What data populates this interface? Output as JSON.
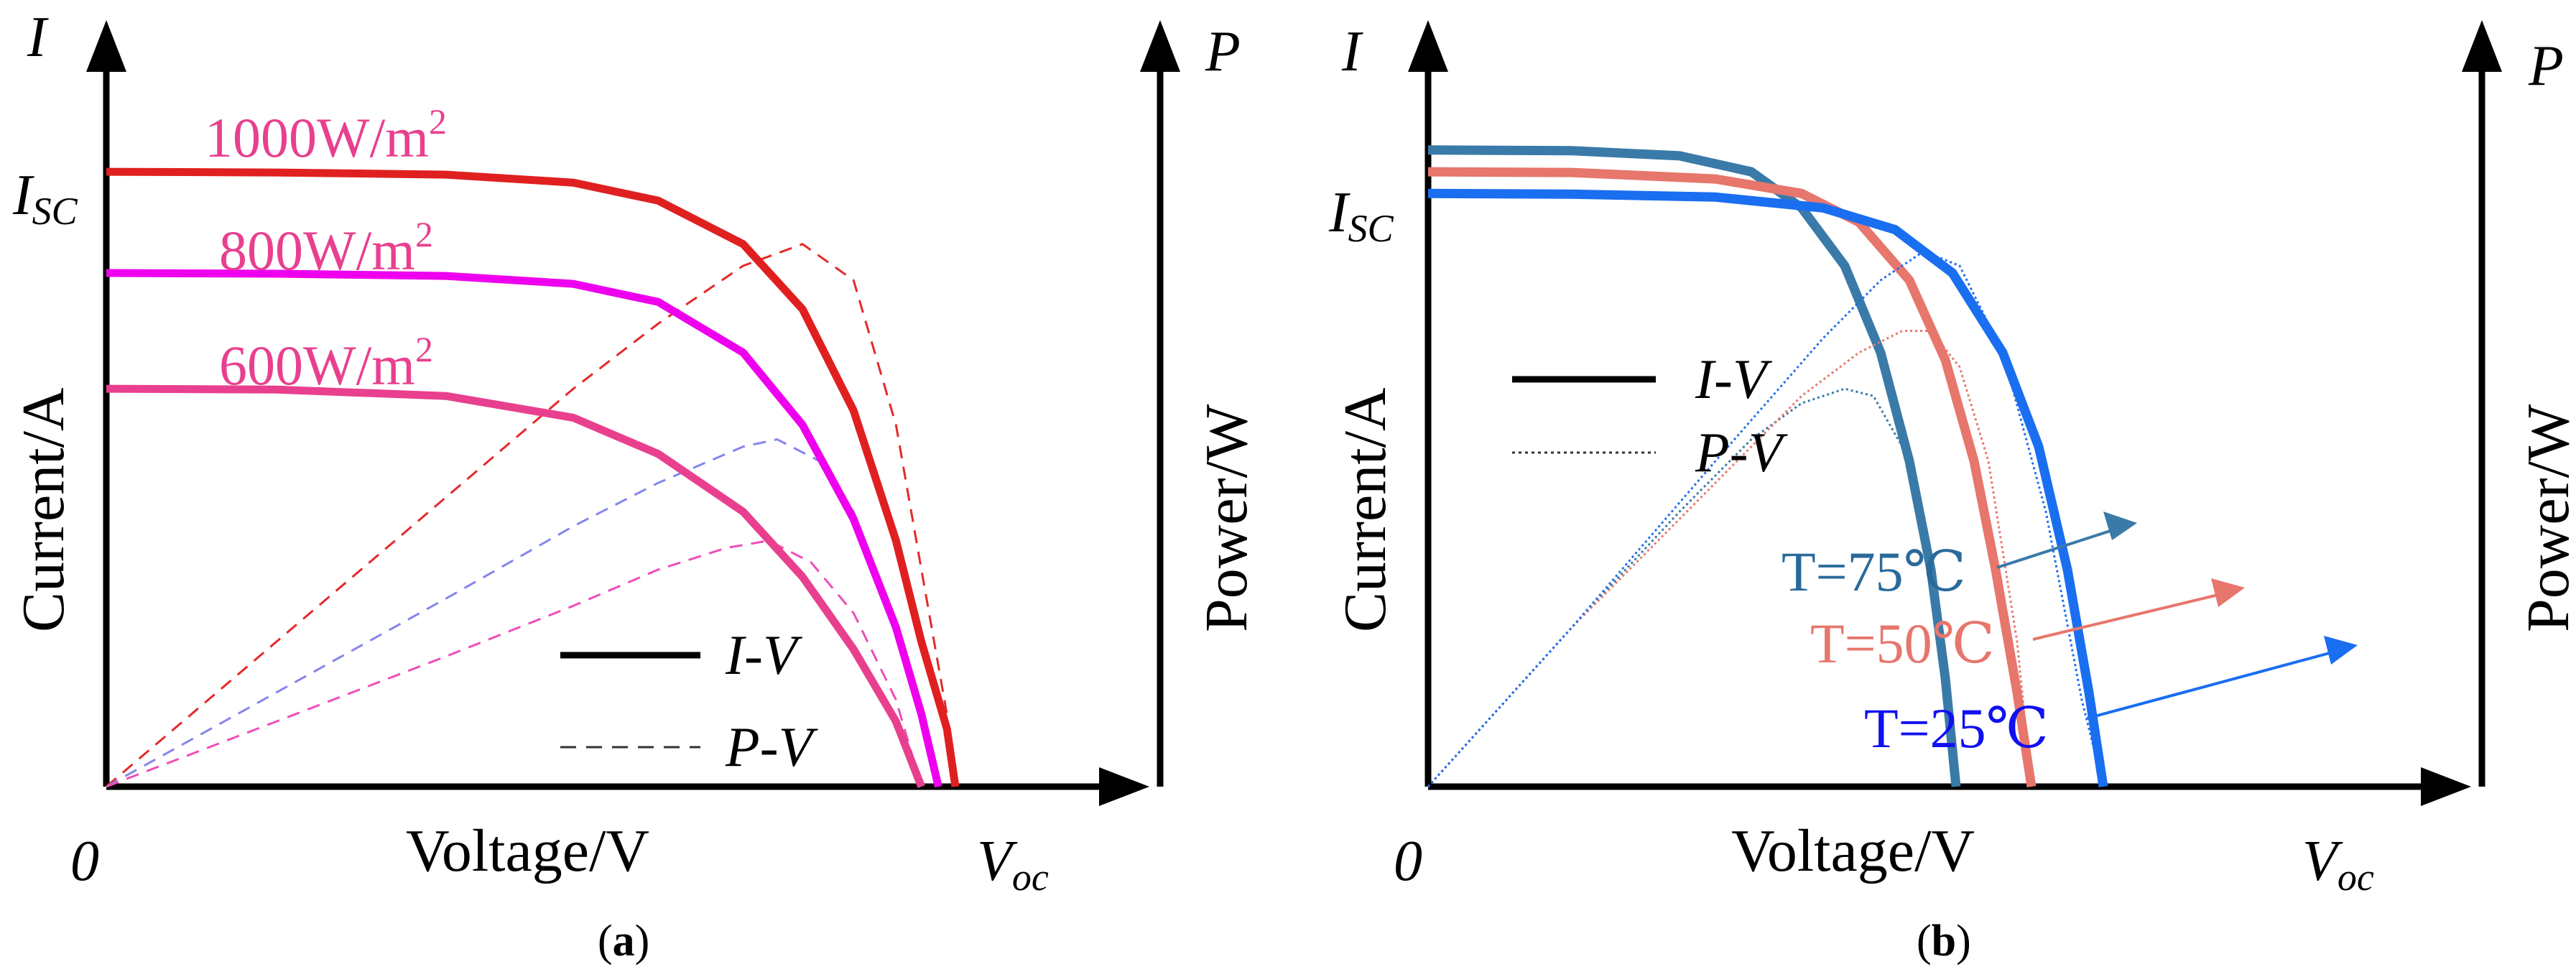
{
  "colors": {
    "axis": "#000000",
    "irr_1000": "#e02020",
    "irr_800": "#ee00ee",
    "irr_600": "#e8408e",
    "pv_1000": "#e52929",
    "pv_800": "#8585ee",
    "pv_600": "#ee4eb8",
    "t75": "#3a7aa8",
    "t50": "#e7766c",
    "t25": "#1a6ef0",
    "label_t75": "#2a6a9a",
    "label_t50": "#e7766c",
    "label_t25": "#1010f0",
    "legend": "#000000"
  },
  "chart_data": [
    {
      "panel": "a",
      "type": "line",
      "caption": "(a)",
      "panel_letter": "a",
      "xlabel": "Voltage/V",
      "ylabel": "Current/A",
      "y2label": "Power/W",
      "axis_I": "I",
      "axis_P": "P",
      "isc_main": "I",
      "isc_sub": "SC",
      "voc_main": "V",
      "voc_sub": "oc",
      "origin": "0",
      "legend": [
        {
          "label": "I-V",
          "style": "solid"
        },
        {
          "label": "P-V",
          "style": "dashed"
        }
      ],
      "series": [
        {
          "name": "1000W/m",
          "sup": "2",
          "color_key": "irr_1000",
          "iv": [
            [
              0,
              0.85
            ],
            [
              0.2,
              0.849
            ],
            [
              0.4,
              0.846
            ],
            [
              0.55,
              0.835
            ],
            [
              0.65,
              0.81
            ],
            [
              0.75,
              0.75
            ],
            [
              0.82,
              0.66
            ],
            [
              0.88,
              0.52
            ],
            [
              0.93,
              0.34
            ],
            [
              0.96,
              0.2
            ],
            [
              0.99,
              0.08
            ],
            [
              1.0,
              0
            ]
          ],
          "pv": [
            [
              0,
              0
            ],
            [
              0.2,
              0.2
            ],
            [
              0.4,
              0.4
            ],
            [
              0.55,
              0.55
            ],
            [
              0.65,
              0.64
            ],
            [
              0.75,
              0.72
            ],
            [
              0.82,
              0.75
            ],
            [
              0.88,
              0.7
            ],
            [
              0.93,
              0.5
            ],
            [
              0.96,
              0.3
            ],
            [
              0.99,
              0.1
            ],
            [
              1.0,
              0
            ]
          ]
        },
        {
          "name": "800W/m",
          "sup": "2",
          "color_key": "irr_800",
          "iv": [
            [
              0,
              0.71
            ],
            [
              0.2,
              0.709
            ],
            [
              0.4,
              0.706
            ],
            [
              0.55,
              0.695
            ],
            [
              0.65,
              0.67
            ],
            [
              0.75,
              0.6
            ],
            [
              0.82,
              0.5
            ],
            [
              0.88,
              0.37
            ],
            [
              0.93,
              0.22
            ],
            [
              0.96,
              0.1
            ],
            [
              0.98,
              0
            ]
          ],
          "pv": [
            [
              0,
              0
            ],
            [
              0.2,
              0.13
            ],
            [
              0.4,
              0.26
            ],
            [
              0.55,
              0.36
            ],
            [
              0.65,
              0.42
            ],
            [
              0.75,
              0.47
            ],
            [
              0.79,
              0.48
            ],
            [
              0.84,
              0.45
            ],
            [
              0.88,
              0.38
            ],
            [
              0.93,
              0.22
            ],
            [
              0.96,
              0.09
            ],
            [
              0.98,
              0
            ]
          ]
        },
        {
          "name": "600W/m",
          "sup": "2",
          "color_key": "irr_600",
          "iv": [
            [
              0,
              0.55
            ],
            [
              0.2,
              0.549
            ],
            [
              0.4,
              0.54
            ],
            [
              0.55,
              0.51
            ],
            [
              0.65,
              0.46
            ],
            [
              0.75,
              0.38
            ],
            [
              0.82,
              0.29
            ],
            [
              0.88,
              0.19
            ],
            [
              0.93,
              0.09
            ],
            [
              0.96,
              0
            ]
          ],
          "pv": [
            [
              0,
              0
            ],
            [
              0.2,
              0.09
            ],
            [
              0.4,
              0.18
            ],
            [
              0.55,
              0.25
            ],
            [
              0.65,
              0.3
            ],
            [
              0.73,
              0.33
            ],
            [
              0.78,
              0.34
            ],
            [
              0.83,
              0.31
            ],
            [
              0.88,
              0.24
            ],
            [
              0.93,
              0.12
            ],
            [
              0.96,
              0
            ]
          ]
        }
      ]
    },
    {
      "panel": "b",
      "type": "line",
      "caption": "(b)",
      "panel_letter": "b",
      "xlabel": "Voltage/V",
      "ylabel": "Current/A",
      "y2label": "Power/W",
      "axis_I": "I",
      "axis_P": "P",
      "isc_main": "I",
      "isc_sub": "SC",
      "voc_main": "V",
      "voc_sub": "oc",
      "origin": "0",
      "legend": [
        {
          "label": "I-V",
          "style": "solid"
        },
        {
          "label": "P-V",
          "style": "dotted"
        }
      ],
      "series": [
        {
          "name": "T=75℃",
          "color_key": "t75",
          "label_color_key": "label_t75",
          "iv": [
            [
              0,
              0.88
            ],
            [
              0.2,
              0.879
            ],
            [
              0.35,
              0.872
            ],
            [
              0.45,
              0.85
            ],
            [
              0.52,
              0.8
            ],
            [
              0.58,
              0.72
            ],
            [
              0.63,
              0.6
            ],
            [
              0.67,
              0.45
            ],
            [
              0.7,
              0.3
            ],
            [
              0.72,
              0.15
            ],
            [
              0.735,
              0
            ]
          ],
          "pv": [
            [
              0,
              0
            ],
            [
              0.2,
              0.22
            ],
            [
              0.35,
              0.38
            ],
            [
              0.45,
              0.48
            ],
            [
              0.52,
              0.53
            ],
            [
              0.58,
              0.55
            ],
            [
              0.62,
              0.54
            ],
            [
              0.66,
              0.47
            ],
            [
              0.7,
              0.32
            ],
            [
              0.72,
              0.18
            ],
            [
              0.735,
              0
            ]
          ]
        },
        {
          "name": "T=50℃",
          "color_key": "t50",
          "label_color_key": "label_t50",
          "iv": [
            [
              0,
              0.85
            ],
            [
              0.2,
              0.849
            ],
            [
              0.4,
              0.84
            ],
            [
              0.52,
              0.82
            ],
            [
              0.6,
              0.78
            ],
            [
              0.67,
              0.7
            ],
            [
              0.72,
              0.59
            ],
            [
              0.76,
              0.45
            ],
            [
              0.79,
              0.3
            ],
            [
              0.82,
              0.13
            ],
            [
              0.84,
              0
            ]
          ],
          "pv": [
            [
              0,
              0
            ],
            [
              0.2,
              0.22
            ],
            [
              0.4,
              0.42
            ],
            [
              0.52,
              0.54
            ],
            [
              0.6,
              0.6
            ],
            [
              0.66,
              0.63
            ],
            [
              0.7,
              0.63
            ],
            [
              0.74,
              0.58
            ],
            [
              0.78,
              0.45
            ],
            [
              0.82,
              0.2
            ],
            [
              0.84,
              0
            ]
          ]
        },
        {
          "name": "T=25℃",
          "color_key": "t25",
          "label_color_key": "label_t25",
          "iv": [
            [
              0,
              0.82
            ],
            [
              0.2,
              0.819
            ],
            [
              0.4,
              0.815
            ],
            [
              0.55,
              0.8
            ],
            [
              0.65,
              0.77
            ],
            [
              0.73,
              0.71
            ],
            [
              0.8,
              0.6
            ],
            [
              0.85,
              0.47
            ],
            [
              0.89,
              0.3
            ],
            [
              0.92,
              0.13
            ],
            [
              0.94,
              0
            ]
          ],
          "pv": [
            [
              0,
              0
            ],
            [
              0.2,
              0.22
            ],
            [
              0.4,
              0.45
            ],
            [
              0.55,
              0.62
            ],
            [
              0.63,
              0.7
            ],
            [
              0.69,
              0.74
            ],
            [
              0.74,
              0.72
            ],
            [
              0.8,
              0.6
            ],
            [
              0.86,
              0.38
            ],
            [
              0.91,
              0.12
            ],
            [
              0.94,
              0
            ]
          ]
        }
      ]
    }
  ]
}
